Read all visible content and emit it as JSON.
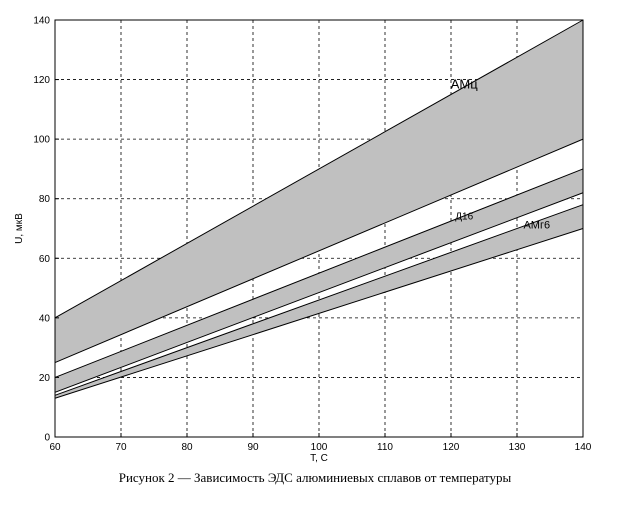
{
  "chart_data": {
    "type": "area",
    "title": "",
    "xlabel": "T, C",
    "ylabel": "U, мкВ",
    "xlim": [
      60,
      140
    ],
    "ylim": [
      0,
      140
    ],
    "x_ticks": [
      60,
      70,
      80,
      90,
      100,
      110,
      120,
      130,
      140
    ],
    "y_ticks": [
      0,
      20,
      40,
      60,
      80,
      100,
      120,
      140
    ],
    "grid": true,
    "band_fill": "#c0c0c0",
    "series": [
      {
        "name": "АМц",
        "x": [
          60,
          140
        ],
        "lower": [
          25,
          100
        ],
        "upper": [
          40,
          140
        ]
      },
      {
        "name": "Д16",
        "x": [
          60,
          140
        ],
        "lower": [
          15,
          82
        ],
        "upper": [
          20,
          90
        ]
      },
      {
        "name": "АМг6",
        "x": [
          60,
          140
        ],
        "lower": [
          13,
          70
        ],
        "upper": [
          14,
          78
        ]
      }
    ]
  },
  "caption": "Рисунок 2 — Зависимость ЭДС алюминиевых сплавов от температуры"
}
